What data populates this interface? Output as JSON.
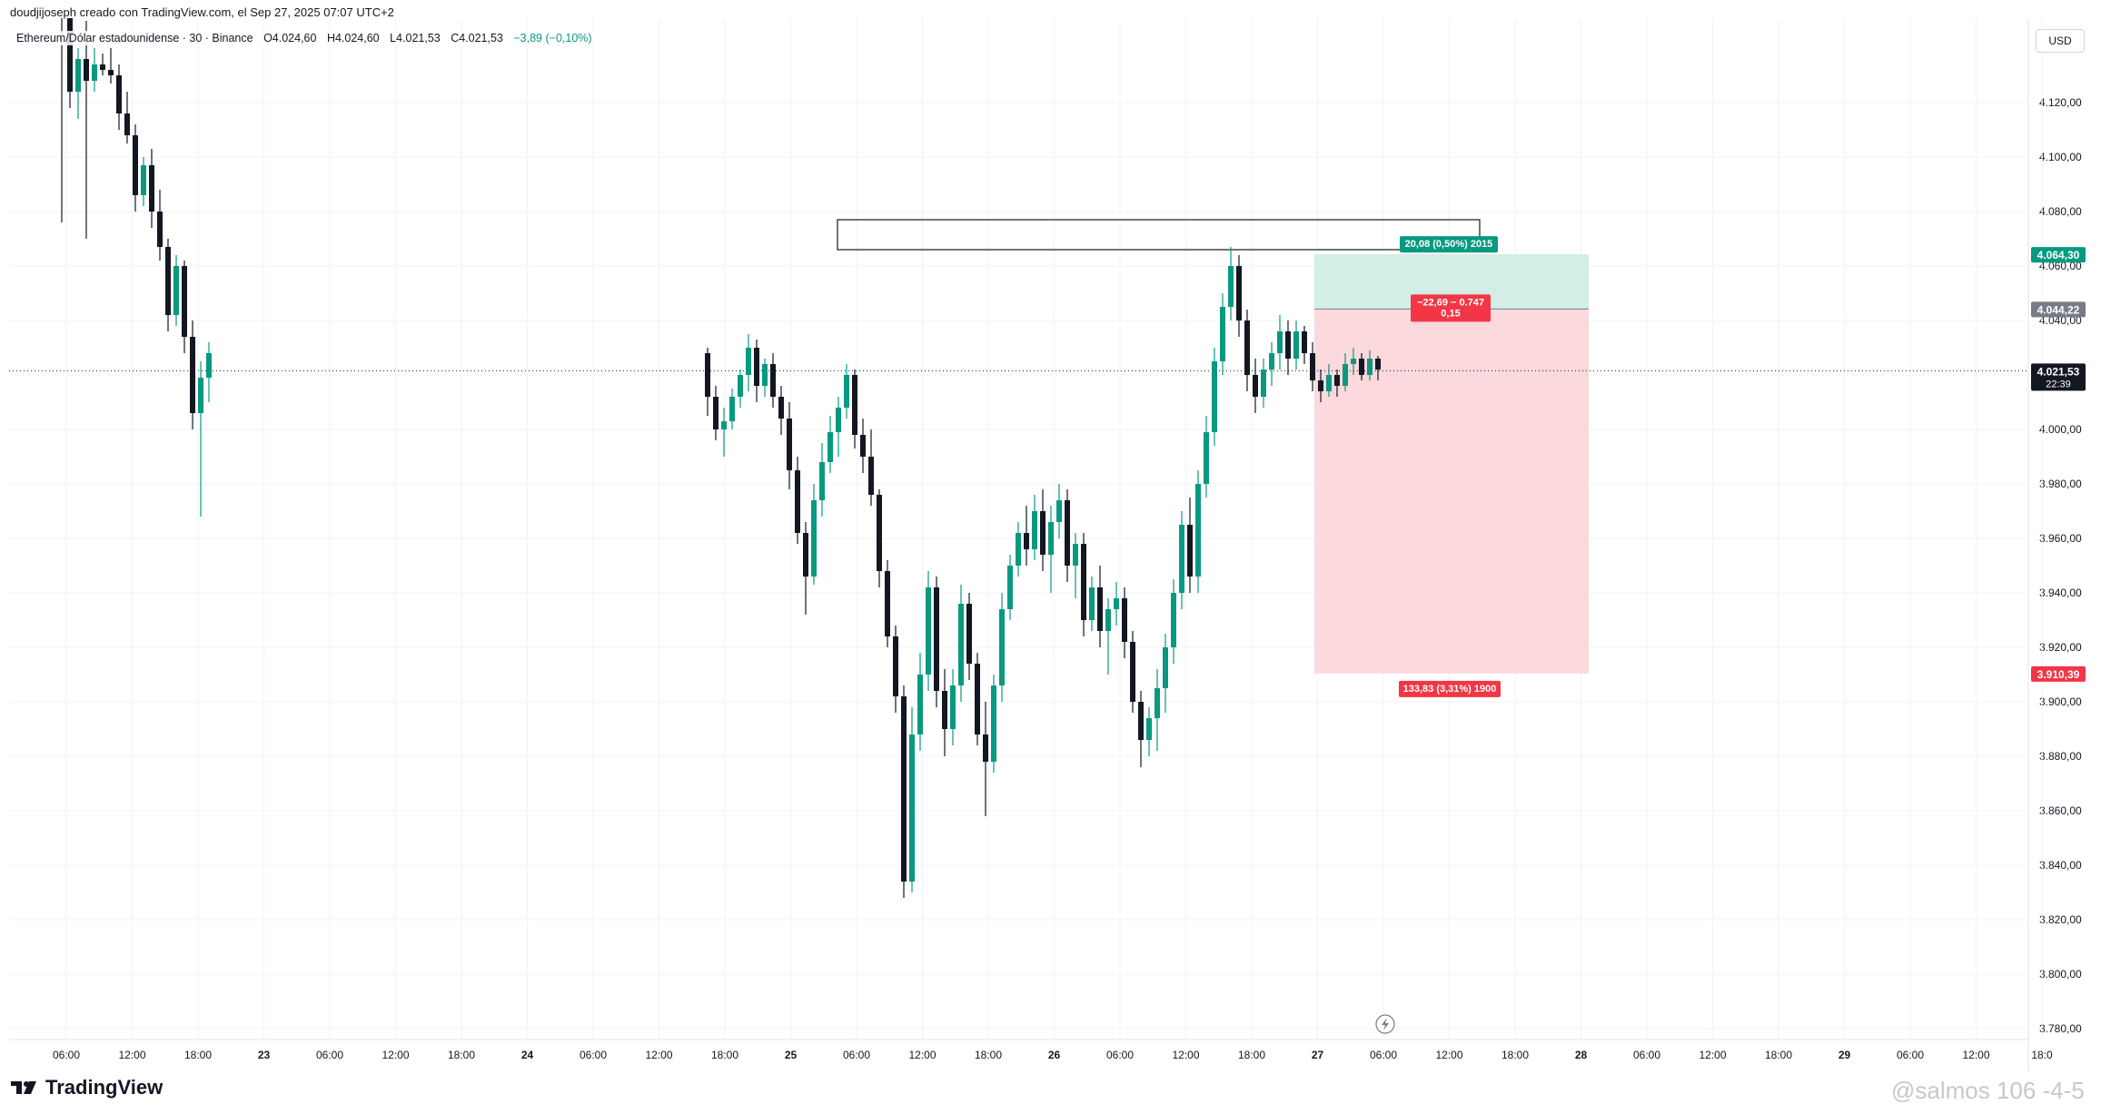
{
  "header": {
    "credit": "doudjijoseph creado con TradingView.com, el Sep 27, 2025 07:07 UTC+2",
    "symbol": "Ethereum/Dólar estadounidense · 30 · Binance",
    "open": "O4.024,60",
    "high": "H4.024,60",
    "low": "L4.021,53",
    "close": "C4.021,53",
    "change": "−3,89 (−0,10%)"
  },
  "currency": "USD",
  "footer": {
    "logo_text": "TradingView",
    "watermark": "@salmos 106 -4-5"
  },
  "colors": {
    "up": "#089981",
    "down": "#131722",
    "target_zone": "#d3ede7",
    "stop_zone": "#fbd9dd",
    "profit_label": "#089981",
    "loss_label": "#f23645",
    "price_label": "#131722",
    "entry_label": "#787b86"
  },
  "chart_data": {
    "type": "candlestick",
    "interval": "30",
    "y_axis": {
      "min": 3778,
      "max": 4130,
      "ticks": [
        4120,
        4100,
        4080,
        4060,
        4040,
        4020,
        4000,
        3980,
        3960,
        3940,
        3920,
        3900,
        3880,
        3860,
        3840,
        3820,
        3800,
        3780
      ],
      "tick_labels": [
        "4.120,00",
        "4.100,00",
        "4.080,00",
        "4.060,00",
        "4.040,00",
        "4.020,00",
        "4.000,00",
        "3.980,00",
        "3.960,00",
        "3.940,00",
        "3.920,00",
        "3.900,00",
        "3.880,00",
        "3.860,00",
        "3.840,00",
        "3.820,00",
        "3.800,00",
        "3.780,00"
      ]
    },
    "x_axis": {
      "tick_labels": [
        "06:00",
        "12:00",
        "18:00",
        "23",
        "06:00",
        "12:00",
        "18:00",
        "24",
        "06:00",
        "12:00",
        "18:00",
        "25",
        "06:00",
        "12:00",
        "18:00",
        "26",
        "06:00",
        "12:00",
        "18:00",
        "27",
        "06:00",
        "12:00",
        "18:00",
        "28",
        "06:00",
        "12:00",
        "18:00",
        "29",
        "06:00",
        "12:00",
        "18:0"
      ],
      "bold": [
        "23",
        "24",
        "25",
        "26",
        "27",
        "28",
        "29"
      ]
    },
    "candles": [
      {
        "o": 4172,
        "h": 4180,
        "l": 4076,
        "c": 4168
      },
      {
        "o": 4168,
        "h": 4170,
        "l": 4118,
        "c": 4124
      },
      {
        "o": 4124,
        "h": 4140,
        "l": 4114,
        "c": 4136
      },
      {
        "o": 4136,
        "h": 4150,
        "l": 4070,
        "c": 4128
      },
      {
        "o": 4128,
        "h": 4140,
        "l": 4124,
        "c": 4134
      },
      {
        "o": 4134,
        "h": 4138,
        "l": 4130,
        "c": 4132
      },
      {
        "o": 4132,
        "h": 4140,
        "l": 4127,
        "c": 4130
      },
      {
        "o": 4130,
        "h": 4134,
        "l": 4110,
        "c": 4116
      },
      {
        "o": 4116,
        "h": 4124,
        "l": 4105,
        "c": 4108
      },
      {
        "o": 4108,
        "h": 4112,
        "l": 4080,
        "c": 4086
      },
      {
        "o": 4086,
        "h": 4100,
        "l": 4082,
        "c": 4097
      },
      {
        "o": 4097,
        "h": 4103,
        "l": 4074,
        "c": 4080
      },
      {
        "o": 4080,
        "h": 4088,
        "l": 4062,
        "c": 4067
      },
      {
        "o": 4067,
        "h": 4070,
        "l": 4036,
        "c": 4042
      },
      {
        "o": 4042,
        "h": 4064,
        "l": 4038,
        "c": 4060
      },
      {
        "o": 4060,
        "h": 4062,
        "l": 4028,
        "c": 4034
      },
      {
        "o": 4034,
        "h": 4040,
        "l": 4000,
        "c": 4006
      },
      {
        "o": 4006,
        "h": 4025,
        "l": 3968,
        "c": 4019
      },
      {
        "o": 4019,
        "h": 4032,
        "l": 4010,
        "c": 4028
      },
      {
        "o": 4028,
        "h": 4030,
        "l": 4005,
        "c": 4012
      },
      {
        "o": 4012,
        "h": 4016,
        "l": 3996,
        "c": 4000
      },
      {
        "o": 4000,
        "h": 4008,
        "l": 3990,
        "c": 4003
      },
      {
        "o": 4003,
        "h": 4015,
        "l": 4000,
        "c": 4012
      },
      {
        "o": 4012,
        "h": 4022,
        "l": 4008,
        "c": 4020
      },
      {
        "o": 4020,
        "h": 4035,
        "l": 4014,
        "c": 4030
      },
      {
        "o": 4030,
        "h": 4033,
        "l": 4010,
        "c": 4016
      },
      {
        "o": 4016,
        "h": 4026,
        "l": 4012,
        "c": 4024
      },
      {
        "o": 4024,
        "h": 4028,
        "l": 4008,
        "c": 4012
      },
      {
        "o": 4012,
        "h": 4016,
        "l": 3998,
        "c": 4004
      },
      {
        "o": 4004,
        "h": 4010,
        "l": 3978,
        "c": 3985
      },
      {
        "o": 3985,
        "h": 3990,
        "l": 3958,
        "c": 3962
      },
      {
        "o": 3962,
        "h": 3966,
        "l": 3932,
        "c": 3946
      },
      {
        "o": 3946,
        "h": 3980,
        "l": 3943,
        "c": 3974
      },
      {
        "o": 3974,
        "h": 3995,
        "l": 3968,
        "c": 3988
      },
      {
        "o": 3988,
        "h": 4005,
        "l": 3984,
        "c": 3999
      },
      {
        "o": 3999,
        "h": 4012,
        "l": 3990,
        "c": 4008
      },
      {
        "o": 4008,
        "h": 4024,
        "l": 4004,
        "c": 4020
      },
      {
        "o": 4020,
        "h": 4022,
        "l": 3993,
        "c": 3998
      },
      {
        "o": 3998,
        "h": 4004,
        "l": 3984,
        "c": 3990
      },
      {
        "o": 3990,
        "h": 4000,
        "l": 3972,
        "c": 3976
      },
      {
        "o": 3976,
        "h": 3978,
        "l": 3942,
        "c": 3948
      },
      {
        "o": 3948,
        "h": 3952,
        "l": 3920,
        "c": 3924
      },
      {
        "o": 3924,
        "h": 3928,
        "l": 3896,
        "c": 3902
      },
      {
        "o": 3902,
        "h": 3906,
        "l": 3828,
        "c": 3834
      },
      {
        "o": 3834,
        "h": 3898,
        "l": 3830,
        "c": 3888
      },
      {
        "o": 3888,
        "h": 3918,
        "l": 3882,
        "c": 3910
      },
      {
        "o": 3910,
        "h": 3948,
        "l": 3904,
        "c": 3942
      },
      {
        "o": 3942,
        "h": 3946,
        "l": 3898,
        "c": 3904
      },
      {
        "o": 3904,
        "h": 3912,
        "l": 3880,
        "c": 3890
      },
      {
        "o": 3890,
        "h": 3912,
        "l": 3884,
        "c": 3906
      },
      {
        "o": 3906,
        "h": 3943,
        "l": 3900,
        "c": 3936
      },
      {
        "o": 3936,
        "h": 3940,
        "l": 3908,
        "c": 3914
      },
      {
        "o": 3914,
        "h": 3918,
        "l": 3884,
        "c": 3888
      },
      {
        "o": 3888,
        "h": 3900,
        "l": 3858,
        "c": 3878
      },
      {
        "o": 3878,
        "h": 3910,
        "l": 3874,
        "c": 3906
      },
      {
        "o": 3906,
        "h": 3940,
        "l": 3900,
        "c": 3934
      },
      {
        "o": 3934,
        "h": 3954,
        "l": 3930,
        "c": 3950
      },
      {
        "o": 3950,
        "h": 3966,
        "l": 3946,
        "c": 3962
      },
      {
        "o": 3962,
        "h": 3972,
        "l": 3950,
        "c": 3956
      },
      {
        "o": 3956,
        "h": 3976,
        "l": 3952,
        "c": 3970
      },
      {
        "o": 3970,
        "h": 3978,
        "l": 3948,
        "c": 3954
      },
      {
        "o": 3954,
        "h": 3972,
        "l": 3940,
        "c": 3966
      },
      {
        "o": 3966,
        "h": 3980,
        "l": 3960,
        "c": 3974
      },
      {
        "o": 3974,
        "h": 3978,
        "l": 3944,
        "c": 3950
      },
      {
        "o": 3950,
        "h": 3962,
        "l": 3938,
        "c": 3958
      },
      {
        "o": 3958,
        "h": 3962,
        "l": 3924,
        "c": 3930
      },
      {
        "o": 3930,
        "h": 3946,
        "l": 3926,
        "c": 3942
      },
      {
        "o": 3942,
        "h": 3950,
        "l": 3920,
        "c": 3926
      },
      {
        "o": 3926,
        "h": 3938,
        "l": 3910,
        "c": 3934
      },
      {
        "o": 3934,
        "h": 3944,
        "l": 3928,
        "c": 3938
      },
      {
        "o": 3938,
        "h": 3942,
        "l": 3916,
        "c": 3922
      },
      {
        "o": 3922,
        "h": 3926,
        "l": 3896,
        "c": 3900
      },
      {
        "o": 3900,
        "h": 3904,
        "l": 3876,
        "c": 3886
      },
      {
        "o": 3886,
        "h": 3898,
        "l": 3880,
        "c": 3894
      },
      {
        "o": 3894,
        "h": 3912,
        "l": 3882,
        "c": 3905
      },
      {
        "o": 3905,
        "h": 3925,
        "l": 3896,
        "c": 3920
      },
      {
        "o": 3920,
        "h": 3945,
        "l": 3914,
        "c": 3940
      },
      {
        "o": 3940,
        "h": 3970,
        "l": 3934,
        "c": 3965
      },
      {
        "o": 3965,
        "h": 3975,
        "l": 3940,
        "c": 3946
      },
      {
        "o": 3946,
        "h": 3985,
        "l": 3940,
        "c": 3980
      },
      {
        "o": 3980,
        "h": 4005,
        "l": 3975,
        "c": 3999
      },
      {
        "o": 3999,
        "h": 4030,
        "l": 3994,
        "c": 4025
      },
      {
        "o": 4025,
        "h": 4050,
        "l": 4020,
        "c": 4045
      },
      {
        "o": 4045,
        "h": 4067,
        "l": 4040,
        "c": 4060
      },
      {
        "o": 4060,
        "h": 4064,
        "l": 4034,
        "c": 4040
      },
      {
        "o": 4040,
        "h": 4044,
        "l": 4014,
        "c": 4020
      },
      {
        "o": 4020,
        "h": 4026,
        "l": 4006,
        "c": 4012
      },
      {
        "o": 4012,
        "h": 4026,
        "l": 4008,
        "c": 4022
      },
      {
        "o": 4022,
        "h": 4032,
        "l": 4016,
        "c": 4028
      },
      {
        "o": 4028,
        "h": 4042,
        "l": 4022,
        "c": 4036
      },
      {
        "o": 4036,
        "h": 4040,
        "l": 4020,
        "c": 4026
      },
      {
        "o": 4026,
        "h": 4040,
        "l": 4022,
        "c": 4036
      },
      {
        "o": 4036,
        "h": 4038,
        "l": 4024,
        "c": 4028
      },
      {
        "o": 4028,
        "h": 4032,
        "l": 4014,
        "c": 4018
      },
      {
        "o": 4018,
        "h": 4022,
        "l": 4010,
        "c": 4014
      },
      {
        "o": 4014,
        "h": 4024,
        "l": 4012,
        "c": 4020
      },
      {
        "o": 4020,
        "h": 4022,
        "l": 4012,
        "c": 4016
      },
      {
        "o": 4016,
        "h": 4028,
        "l": 4014,
        "c": 4024
      },
      {
        "o": 4024,
        "h": 4030,
        "l": 4020,
        "c": 4026
      },
      {
        "o": 4026,
        "h": 4028,
        "l": 4018,
        "c": 4020
      },
      {
        "o": 4020,
        "h": 4029,
        "l": 4018,
        "c": 4026
      },
      {
        "o": 4026,
        "h": 4027,
        "l": 4018,
        "c": 4022
      }
    ],
    "price_labels": [
      {
        "value": 4064.3,
        "text": "4.064,30",
        "role": "target",
        "color": "#089981"
      },
      {
        "value": 4044.22,
        "text": "4.044,22",
        "role": "entry",
        "color": "#787b86"
      },
      {
        "value": 4021.53,
        "text": "4.021,53",
        "sub": "22:39",
        "role": "last",
        "color": "#131722"
      },
      {
        "value": 3910.39,
        "text": "3.910,39",
        "role": "stop",
        "color": "#f23645"
      }
    ],
    "position_tool": {
      "type": "short",
      "entry": 4044.22,
      "target": 4064.3,
      "stop": 3910.39,
      "profit_label": "20,08 (0,50%) 2015",
      "risk_label": "133,83 (3,31%) 1900",
      "pnl_line1": "−22,69 − 0.747",
      "pnl_line2": "0,15"
    },
    "rectangle_zone": {
      "top": 4077,
      "bottom": 4066
    },
    "last_price": 4021.53
  }
}
